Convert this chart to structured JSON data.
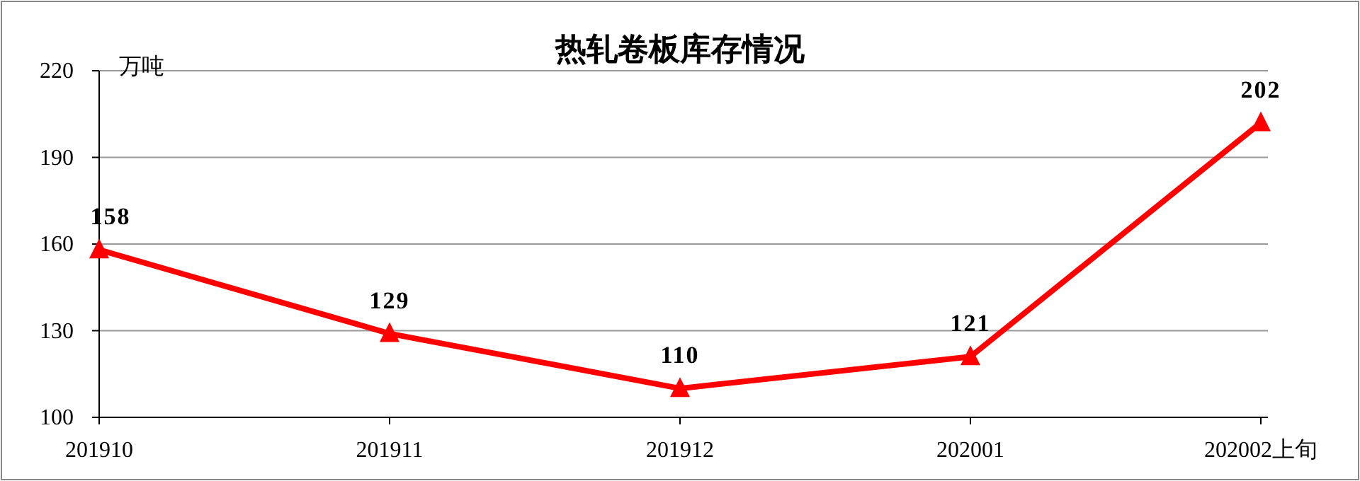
{
  "chart_data": {
    "type": "line",
    "title": "热轧卷板库存情况",
    "ylabel": "万吨",
    "categories": [
      "201910",
      "201911",
      "201912",
      "202001",
      "202002上旬"
    ],
    "series": [
      {
        "color": "#ff0000",
        "values": [
          158,
          129,
          110,
          121,
          202
        ]
      }
    ],
    "ylim": [
      100,
      220
    ],
    "yticks": [
      100,
      130,
      160,
      190,
      220
    ],
    "grid": "y",
    "marker": "triangle",
    "line_style": "solid",
    "data_labels": true
  }
}
